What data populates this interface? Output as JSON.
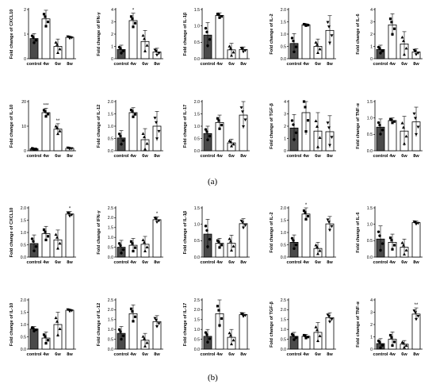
{
  "panel_labels": {
    "a": "(a)",
    "b": "(b)"
  },
  "chart_data": [
    {
      "type": "bar",
      "panel": "a",
      "categories": [
        "control",
        "4w",
        "6w",
        "8w"
      ],
      "ylabel": "Fold change of CXCL10",
      "ylim": [
        0,
        2
      ],
      "yticks": [
        "0",
        "1",
        "2"
      ],
      "values": [
        0.82,
        1.62,
        0.5,
        0.87
      ],
      "errors": [
        0.2,
        0.35,
        0.3,
        0.05
      ],
      "sig": [
        "",
        "",
        "",
        ""
      ]
    },
    {
      "type": "bar",
      "panel": "a",
      "categories": [
        "control",
        "4w",
        "6w",
        "8w"
      ],
      "ylabel": "Fold change of IFN-γ",
      "ylim": [
        0,
        4
      ],
      "yticks": [
        "0",
        "1",
        "2",
        "3",
        "4"
      ],
      "values": [
        0.75,
        3.1,
        1.4,
        0.55
      ],
      "errors": [
        0.35,
        0.6,
        0.9,
        0.3
      ],
      "sig": [
        "",
        "*",
        "",
        ""
      ]
    },
    {
      "type": "bar",
      "panel": "a",
      "categories": [
        "control",
        "4w",
        "6w",
        "8w"
      ],
      "ylabel": "Fold change of IL-1β",
      "ylim": [
        0,
        1.5
      ],
      "yticks": [
        "0.0",
        "0.5",
        "1.0",
        "1.5"
      ],
      "values": [
        0.72,
        1.32,
        0.27,
        0.28
      ],
      "errors": [
        0.38,
        0.08,
        0.2,
        0.08
      ],
      "sig": [
        "",
        "",
        "",
        ""
      ]
    },
    {
      "type": "bar",
      "panel": "a",
      "categories": [
        "control",
        "4w",
        "6w",
        "8w"
      ],
      "ylabel": "Fold change of IL-2",
      "ylim": [
        0,
        2
      ],
      "yticks": [
        "0.0",
        "0.5",
        "1.0",
        "1.5",
        "2.0"
      ],
      "values": [
        0.62,
        1.38,
        0.5,
        1.15
      ],
      "errors": [
        0.4,
        0.04,
        0.3,
        0.6
      ],
      "sig": [
        "",
        "",
        "",
        ""
      ]
    },
    {
      "type": "bar",
      "panel": "a",
      "categories": [
        "control",
        "4w",
        "6w",
        "8w"
      ],
      "ylabel": "Fold change of IL-6",
      "ylim": [
        0,
        4
      ],
      "yticks": [
        "0",
        "1",
        "2",
        "3",
        "4"
      ],
      "values": [
        0.75,
        2.75,
        1.2,
        0.55
      ],
      "errors": [
        0.35,
        0.9,
        1.0,
        0.25
      ],
      "sig": [
        "",
        "",
        "",
        ""
      ]
    },
    {
      "type": "bar",
      "panel": "a",
      "categories": [
        "control",
        "4w",
        "6w",
        "8w"
      ],
      "ylabel": "Fold change of IL-10",
      "ylim": [
        0,
        20
      ],
      "yticks": [
        "0",
        "10",
        "20"
      ],
      "values": [
        0.8,
        15.5,
        8.8,
        1.0
      ],
      "errors": [
        0.3,
        1.8,
        2.2,
        0.3
      ],
      "sig": [
        "",
        "***",
        "**",
        ""
      ]
    },
    {
      "type": "bar",
      "panel": "a",
      "categories": [
        "control",
        "4w",
        "6w",
        "8w"
      ],
      "ylabel": "Fold change of IL-12",
      "ylim": [
        0,
        2
      ],
      "yticks": [
        "0.0",
        "0.5",
        "1.0",
        "1.5",
        "2.0"
      ],
      "values": [
        0.52,
        1.55,
        0.45,
        1.0
      ],
      "errors": [
        0.3,
        0.2,
        0.45,
        0.6
      ],
      "sig": [
        "",
        "",
        "",
        ""
      ]
    },
    {
      "type": "bar",
      "panel": "a",
      "categories": [
        "control",
        "4w",
        "6w",
        "8w"
      ],
      "ylabel": "Fold change of IL-17",
      "ylim": [
        0,
        2
      ],
      "yticks": [
        "0.0",
        "0.5",
        "1.0",
        "1.5",
        "2.0"
      ],
      "values": [
        0.7,
        1.15,
        0.32,
        1.45
      ],
      "errors": [
        0.3,
        0.3,
        0.15,
        0.55
      ],
      "sig": [
        "",
        "",
        "",
        ""
      ]
    },
    {
      "type": "bar",
      "panel": "a",
      "categories": [
        "control",
        "4w",
        "6w",
        "8w"
      ],
      "ylabel": "Fold change of TGF-β",
      "ylim": [
        0,
        4
      ],
      "yticks": [
        "0",
        "1",
        "2",
        "3",
        "4"
      ],
      "values": [
        1.85,
        3.1,
        1.6,
        1.55
      ],
      "errors": [
        1.1,
        1.8,
        1.5,
        1.3
      ],
      "sig": [
        "",
        "",
        "",
        ""
      ]
    },
    {
      "type": "bar",
      "panel": "a",
      "categories": [
        "control",
        "4w",
        "6w",
        "8w"
      ],
      "ylabel": "Fold change of TNF-α",
      "ylim": [
        0,
        1.5
      ],
      "yticks": [
        "0.0",
        "0.5",
        "1.0",
        "1.5"
      ],
      "values": [
        0.72,
        0.92,
        0.6,
        0.88
      ],
      "errors": [
        0.25,
        0.08,
        0.45,
        0.45
      ],
      "sig": [
        "",
        "",
        "",
        ""
      ]
    },
    {
      "type": "bar",
      "panel": "b",
      "categories": [
        "control",
        "4w",
        "6w",
        "8w"
      ],
      "ylabel": "Fold change of CXCL10",
      "ylim": [
        0,
        2
      ],
      "yticks": [
        "0.0",
        "0.5",
        "1.0",
        "1.5",
        "2.0"
      ],
      "values": [
        0.55,
        0.95,
        0.7,
        1.75
      ],
      "errors": [
        0.35,
        0.3,
        0.4,
        0.1
      ],
      "sig": [
        "",
        "",
        "",
        "*"
      ]
    },
    {
      "type": "bar",
      "panel": "b",
      "categories": [
        "control",
        "4w",
        "6w",
        "8w"
      ],
      "ylabel": "Fold change of IFN-γ",
      "ylim": [
        0,
        2.5
      ],
      "yticks": [
        "0.0",
        "0.5",
        "1.0",
        "1.5",
        "2.0",
        "2.5"
      ],
      "values": [
        0.5,
        0.6,
        0.65,
        1.9
      ],
      "errors": [
        0.35,
        0.35,
        0.4,
        0.15
      ],
      "sig": [
        "",
        "",
        "",
        "*"
      ]
    },
    {
      "type": "bar",
      "panel": "b",
      "categories": [
        "control",
        "4w",
        "6w",
        "8w"
      ],
      "ylabel": "Fold change of IL-1β",
      "ylim": [
        0,
        1.5
      ],
      "yticks": [
        "0.0",
        "0.5",
        "1.0",
        "1.5"
      ],
      "values": [
        0.7,
        0.42,
        0.42,
        1.02
      ],
      "errors": [
        0.45,
        0.15,
        0.25,
        0.15
      ],
      "sig": [
        "",
        "",
        "",
        ""
      ]
    },
    {
      "type": "bar",
      "panel": "b",
      "categories": [
        "control",
        "4w",
        "6w",
        "8w"
      ],
      "ylabel": "Fold change of IL-2",
      "ylim": [
        0,
        2
      ],
      "yticks": [
        "0.0",
        "0.5",
        "1.0",
        "1.5",
        "2.0"
      ],
      "values": [
        0.6,
        1.75,
        0.35,
        1.35
      ],
      "errors": [
        0.3,
        0.25,
        0.25,
        0.3
      ],
      "sig": [
        "",
        "*",
        "",
        ""
      ]
    },
    {
      "type": "bar",
      "panel": "b",
      "categories": [
        "control",
        "4w",
        "6w",
        "8w"
      ],
      "ylabel": "Fold change of IL-6",
      "ylim": [
        0,
        1.5
      ],
      "yticks": [
        "0.0",
        "0.5",
        "1.0",
        "1.5"
      ],
      "values": [
        0.55,
        0.45,
        0.3,
        1.05
      ],
      "errors": [
        0.4,
        0.25,
        0.25,
        0.05
      ],
      "sig": [
        "",
        "",
        "",
        ""
      ]
    },
    {
      "type": "bar",
      "panel": "b",
      "categories": [
        "control",
        "4w",
        "6w",
        "8w"
      ],
      "ylabel": "Fold change of IL-10",
      "ylim": [
        0,
        2
      ],
      "yticks": [
        "0.0",
        "0.5",
        "1.0",
        "1.5",
        "2.0"
      ],
      "values": [
        0.82,
        0.45,
        1.0,
        1.58
      ],
      "errors": [
        0.1,
        0.25,
        0.5,
        0.05
      ],
      "sig": [
        "",
        "",
        "",
        ""
      ]
    },
    {
      "type": "bar",
      "panel": "b",
      "categories": [
        "control",
        "4w",
        "6w",
        "8w"
      ],
      "ylabel": "Fold change of IL-12",
      "ylim": [
        0,
        2.5
      ],
      "yticks": [
        "0.0",
        "0.5",
        "1.0",
        "1.5",
        "2.0",
        "2.5"
      ],
      "values": [
        0.8,
        1.8,
        0.45,
        1.4
      ],
      "errors": [
        0.35,
        0.45,
        0.35,
        0.3
      ],
      "sig": [
        "",
        "",
        "",
        ""
      ]
    },
    {
      "type": "bar",
      "panel": "b",
      "categories": [
        "control",
        "4w",
        "6w",
        "8w"
      ],
      "ylabel": "Fold change of IL-17",
      "ylim": [
        0,
        2.5
      ],
      "yticks": [
        "0.0",
        "0.5",
        "1.0",
        "1.5",
        "2.0",
        "2.5"
      ],
      "values": [
        0.65,
        1.8,
        0.6,
        1.75
      ],
      "errors": [
        0.35,
        0.7,
        0.4,
        0.1
      ],
      "sig": [
        "",
        "",
        "",
        ""
      ]
    },
    {
      "type": "bar",
      "panel": "b",
      "categories": [
        "control",
        "4w",
        "6w",
        "8w"
      ],
      "ylabel": "Fold change of TGF-β",
      "ylim": [
        0,
        2.5
      ],
      "yticks": [
        "0.0",
        "0.5",
        "1.0",
        "1.5",
        "2.0",
        "2.5"
      ],
      "values": [
        0.65,
        0.65,
        0.85,
        1.6
      ],
      "errors": [
        0.2,
        0.1,
        0.5,
        0.25
      ],
      "sig": [
        "",
        "",
        "",
        ""
      ]
    },
    {
      "type": "bar",
      "panel": "b",
      "categories": [
        "control",
        "4w",
        "6w",
        "8w"
      ],
      "ylabel": "Fold change of TNF-α",
      "ylim": [
        0,
        4
      ],
      "yticks": [
        "0",
        "1",
        "2",
        "3",
        "4"
      ],
      "values": [
        0.45,
        0.8,
        0.4,
        2.85
      ],
      "errors": [
        0.4,
        0.6,
        0.3,
        0.5
      ],
      "sig": [
        "",
        "",
        "",
        "**"
      ]
    }
  ]
}
